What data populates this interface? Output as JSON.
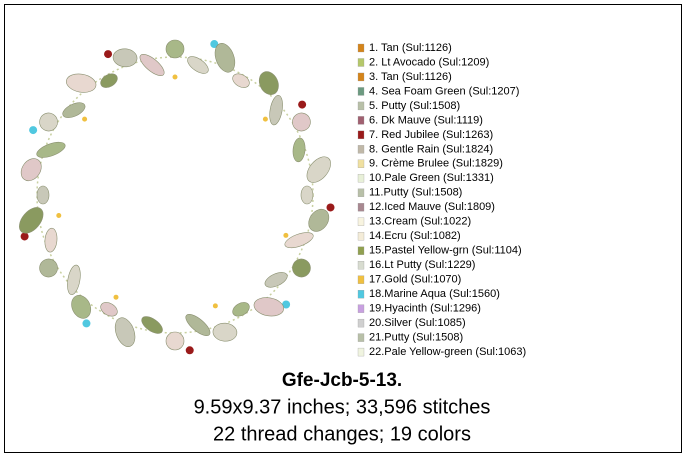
{
  "design": {
    "name": "Gfe-Jcb-5-13.",
    "size_line": "9.59x9.37 inches; 33,596 stitches",
    "changes_line": "22 thread changes; 19 colors"
  },
  "threads": [
    {
      "label": "1. Tan (Sul:1126)",
      "color": "#d4841a"
    },
    {
      "label": "2. Lt Avocado (Sul:1209)",
      "color": "#b5c86a"
    },
    {
      "label": "3. Tan (Sul:1126)",
      "color": "#d4841a"
    },
    {
      "label": "4. Sea Foam Green (Sul:1207)",
      "color": "#6c9a80"
    },
    {
      "label": "5. Putty (Sul:1508)",
      "color": "#b8c0a8"
    },
    {
      "label": "6. Dk Mauve (Sul:1119)",
      "color": "#a06070"
    },
    {
      "label": "7. Red Jubilee (Sul:1263)",
      "color": "#9a1a1a"
    },
    {
      "label": "8. Gentle Rain (Sul:1824)",
      "color": "#c0b8a8"
    },
    {
      "label": "9. Crème Brulee (Sul:1829)",
      "color": "#f0e0a0"
    },
    {
      "label": "10.Pale Green (Sul:1331)",
      "color": "#e8f0d8"
    },
    {
      "label": "11.Putty (Sul:1508)",
      "color": "#b8c0a8"
    },
    {
      "label": "12.Iced Mauve (Sul:1809)",
      "color": "#a88890"
    },
    {
      "label": "13.Cream (Sul:1022)",
      "color": "#f8f4e0"
    },
    {
      "label": "14.Ecru (Sul:1082)",
      "color": "#f4ecd8"
    },
    {
      "label": "15.Pastel Yellow-grn (Sul:1104)",
      "color": "#90a050"
    },
    {
      "label": "16.Lt Putty (Sul:1229)",
      "color": "#d8dcd0"
    },
    {
      "label": "17.Gold (Sul:1070)",
      "color": "#f0c040"
    },
    {
      "label": "18.Marine Aqua (Sul:1560)",
      "color": "#50c8e0"
    },
    {
      "label": "19.Hyacinth (Sul:1296)",
      "color": "#c8a0e0"
    },
    {
      "label": "20.Silver (Sul:1085)",
      "color": "#d0d0d0"
    },
    {
      "label": "21.Putty (Sul:1508)",
      "color": "#b8c0a8"
    },
    {
      "label": "22.Pale Yellow-green (Sul:1063)",
      "color": "#f0f4e0"
    }
  ]
}
